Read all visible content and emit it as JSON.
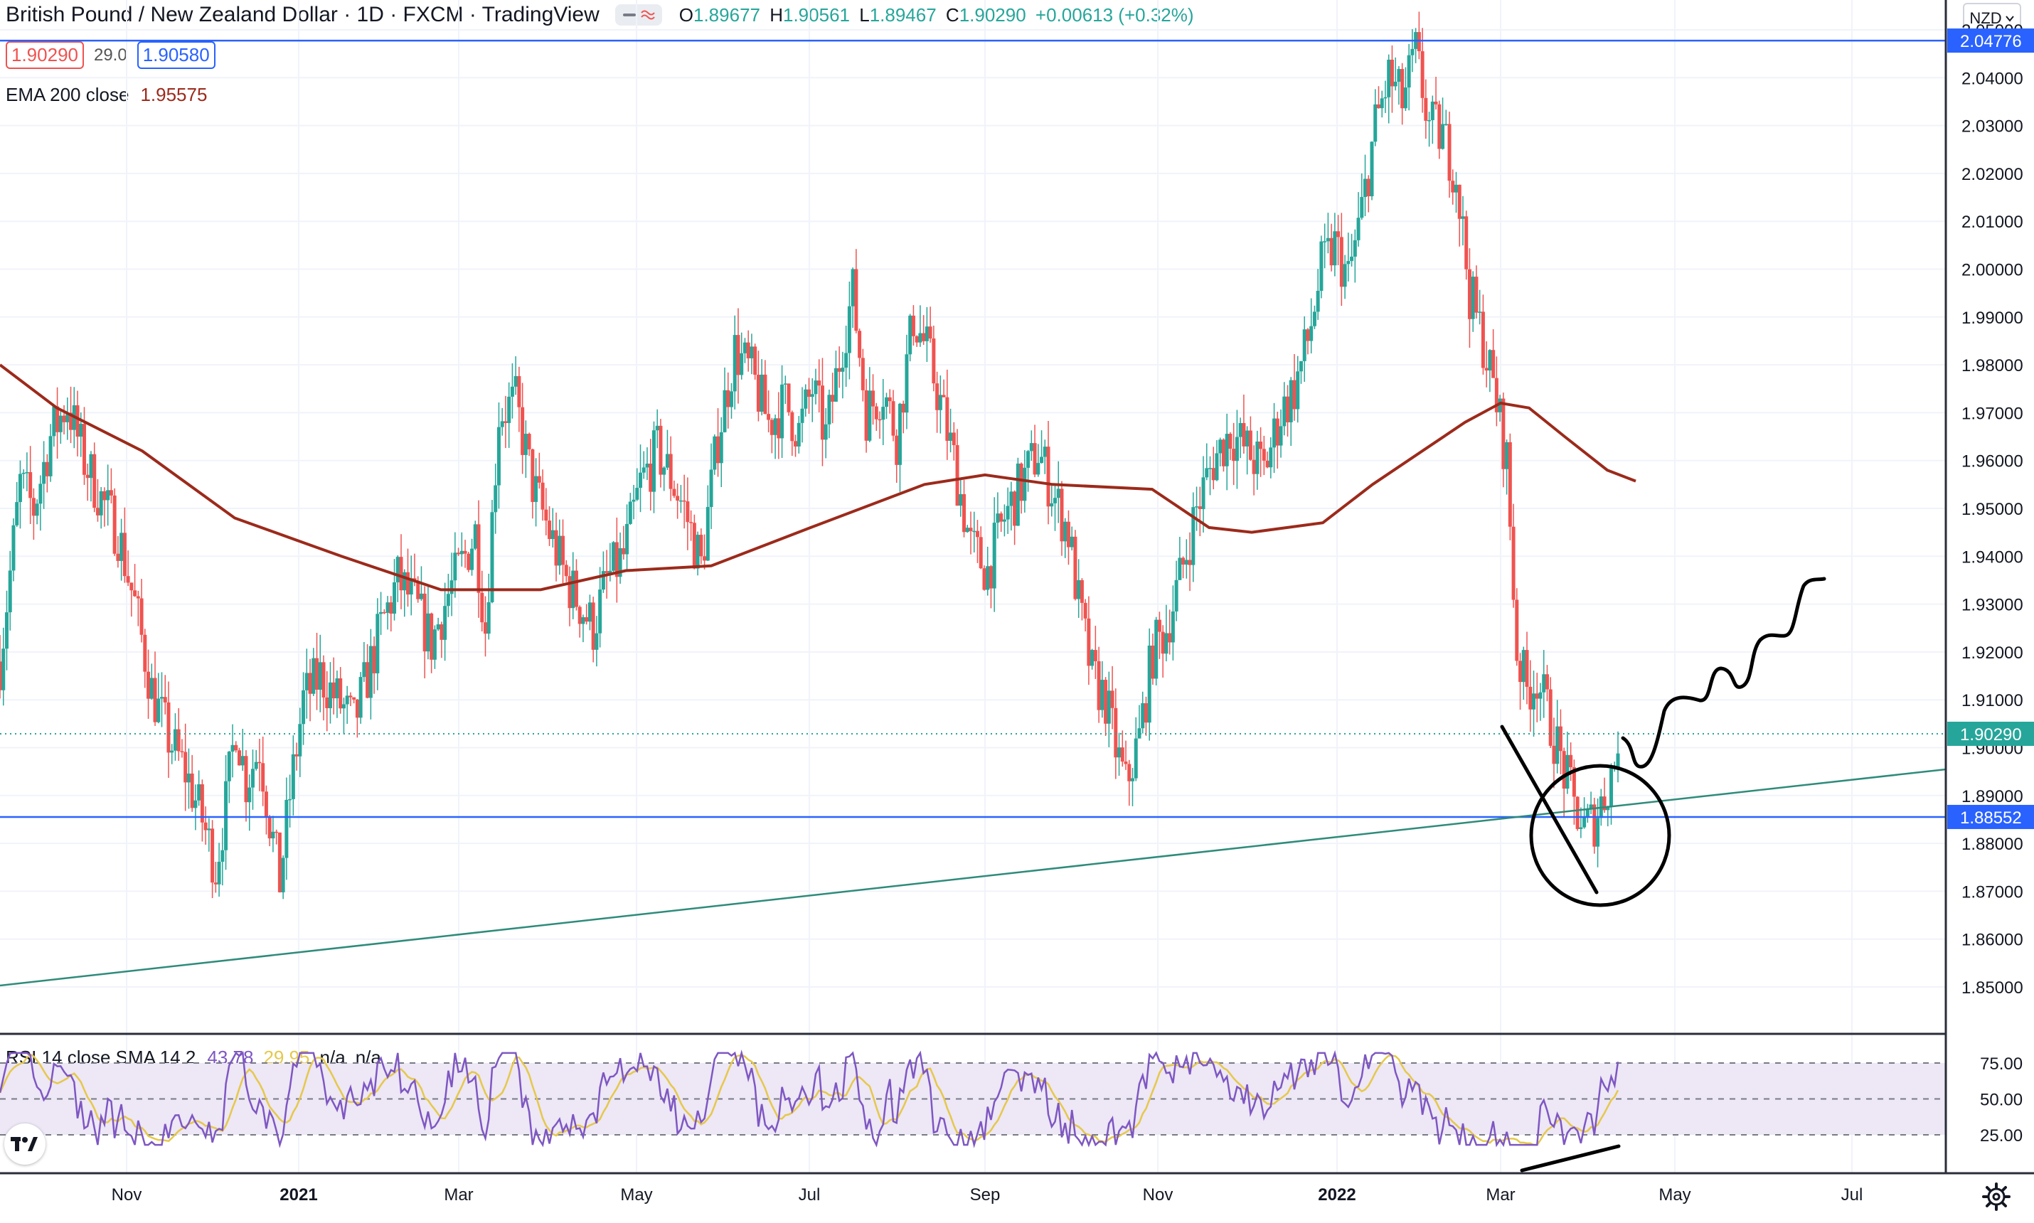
{
  "header": {
    "symbol_title": "British Pound / New Zealand Dollar · 1D · FXCM · TradingView",
    "open_label": "O",
    "open": "1.89677",
    "high_label": "H",
    "high": "1.90561",
    "low_label": "L",
    "low": "1.89467",
    "close_label": "C",
    "close": "1.90290",
    "change": "+0.00613 (+0.32%)",
    "bid": "1.90290",
    "spread": "29.0",
    "ask": "1.90580",
    "currency": "NZD"
  },
  "ema": {
    "label": "EMA 200 close",
    "value": "1.95575"
  },
  "rsi": {
    "label": "RSI 14 close SMA 14 2",
    "rsi_value": "43.78",
    "sma_value": "29.95",
    "na1": "n/a",
    "na2": "n/a",
    "levels": [
      "75.00",
      "50.00",
      "25.00"
    ]
  },
  "price_axis": {
    "ticks": [
      "2.05000",
      "2.04000",
      "2.03000",
      "2.02000",
      "2.01000",
      "2.00000",
      "1.99000",
      "1.98000",
      "1.97000",
      "1.96000",
      "1.95000",
      "1.94000",
      "1.93000",
      "1.92000",
      "1.91000",
      "1.90000",
      "1.89000",
      "1.88000",
      "1.87000",
      "1.86000",
      "1.85000"
    ],
    "labels": {
      "upper_line": "2.04776",
      "current": "1.90290",
      "lower_line": "1.88552"
    }
  },
  "time_axis": {
    "labels": [
      "Nov",
      "2021",
      "Mar",
      "May",
      "Jul",
      "Sep",
      "Nov",
      "2022",
      "Mar",
      "May",
      "Jul"
    ]
  },
  "colors": {
    "up": "#26a69a",
    "down": "#ef5350",
    "ema": "#9c2a1b",
    "hline": "#2962ff",
    "trend": "#2e8b7a",
    "rsi": "#7e57c2",
    "rsi_sma": "#e6c84a",
    "rsi_band": "#ede7f6"
  },
  "icons": {
    "settings": "gear-icon",
    "logo": "tradingview-logo-icon",
    "currency_dropdown": "chevron-down-icon"
  }
}
